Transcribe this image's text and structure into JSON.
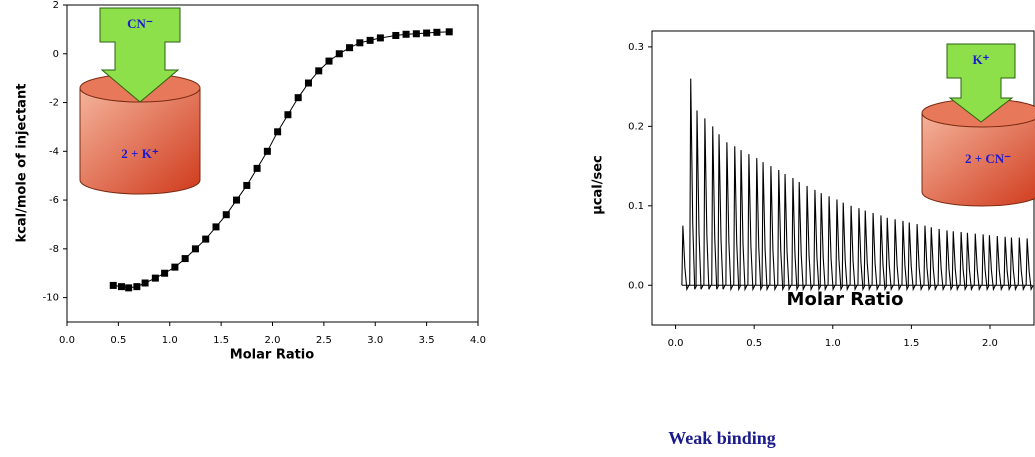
{
  "chart_data": [
    {
      "type": "line",
      "marker": "square",
      "color": "#000000",
      "y_label": "kcal/mole of injectant",
      "x_label": "Molar Ratio",
      "x": [
        0.45,
        0.53,
        0.6,
        0.68,
        0.76,
        0.86,
        0.95,
        1.05,
        1.15,
        1.25,
        1.35,
        1.45,
        1.55,
        1.65,
        1.75,
        1.85,
        1.95,
        2.05,
        2.15,
        2.25,
        2.35,
        2.45,
        2.55,
        2.65,
        2.75,
        2.85,
        2.95,
        3.05,
        3.2,
        3.3,
        3.4,
        3.5,
        3.6,
        3.72
      ],
      "values": [
        -9.5,
        -9.55,
        -9.6,
        -9.55,
        -9.4,
        -9.2,
        -9.0,
        -8.75,
        -8.4,
        -8.0,
        -7.6,
        -7.1,
        -6.6,
        -6.0,
        -5.4,
        -4.7,
        -4.0,
        -3.2,
        -2.5,
        -1.8,
        -1.2,
        -0.7,
        -0.3,
        0.0,
        0.25,
        0.45,
        0.55,
        0.65,
        0.75,
        0.8,
        0.82,
        0.85,
        0.88,
        0.9
      ],
      "xlim": [
        0,
        4
      ],
      "ylim": [
        -11,
        2
      ],
      "xticks": [
        {
          "value": 0,
          "label": "0.0"
        },
        {
          "value": 0.5,
          "label": "0.5"
        },
        {
          "value": 1,
          "label": "1.0"
        },
        {
          "value": 1.5,
          "label": "1.5"
        },
        {
          "value": 2,
          "label": "2.0"
        },
        {
          "value": 2.5,
          "label": "2.5"
        },
        {
          "value": 3,
          "label": "3.0"
        },
        {
          "value": 3.5,
          "label": "3.5"
        },
        {
          "value": 4,
          "label": "4.0"
        }
      ],
      "yticks": [
        -10,
        -8,
        -6,
        -4,
        -2,
        0,
        2
      ],
      "annotations": [
        "CN⁻",
        "2 + K⁺"
      ]
    },
    {
      "type": "spike",
      "color": "#000000",
      "y_label": "µcal/sec",
      "x_label": "Molar Ratio",
      "x": [
        0.04,
        0.09,
        0.13,
        0.18,
        0.23,
        0.27,
        0.32,
        0.37,
        0.41,
        0.46,
        0.51,
        0.55,
        0.6,
        0.65,
        0.69,
        0.74,
        0.78,
        0.83,
        0.88,
        0.92,
        0.97,
        1.02,
        1.06,
        1.11,
        1.16,
        1.2,
        1.25,
        1.3,
        1.34,
        1.39,
        1.44,
        1.48,
        1.53,
        1.58,
        1.62,
        1.67,
        1.72,
        1.76,
        1.81,
        1.85,
        1.9,
        1.95,
        1.99,
        2.04,
        2.09,
        2.13,
        2.18,
        2.23
      ],
      "values": [
        0.075,
        0.26,
        0.22,
        0.21,
        0.2,
        0.19,
        0.18,
        0.175,
        0.17,
        0.165,
        0.16,
        0.155,
        0.15,
        0.145,
        0.14,
        0.135,
        0.13,
        0.125,
        0.12,
        0.116,
        0.112,
        0.108,
        0.104,
        0.1,
        0.097,
        0.094,
        0.091,
        0.088,
        0.085,
        0.083,
        0.081,
        0.079,
        0.077,
        0.075,
        0.073,
        0.071,
        0.069,
        0.068,
        0.067,
        0.066,
        0.065,
        0.064,
        0.063,
        0.062,
        0.061,
        0.06,
        0.06,
        0.059
      ],
      "xlim": [
        -0.15,
        2.28
      ],
      "ylim": [
        -0.05,
        0.32
      ],
      "xticks": [
        {
          "value": 0,
          "label": "0.0"
        },
        {
          "value": 0.5,
          "label": "0.5"
        },
        {
          "value": 1,
          "label": "1.0"
        },
        {
          "value": 1.5,
          "label": "1.5"
        },
        {
          "value": 2,
          "label": "2.0"
        }
      ],
      "yticks": [
        {
          "value": 0,
          "label": "0.0"
        },
        {
          "value": 0.1,
          "label": "0.1"
        },
        {
          "value": 0.2,
          "label": "0.2"
        },
        {
          "value": 0.3,
          "label": "0.3"
        }
      ],
      "annotations": [
        "K⁺",
        "2 + CN⁻"
      ],
      "caption": "Weak binding"
    }
  ]
}
